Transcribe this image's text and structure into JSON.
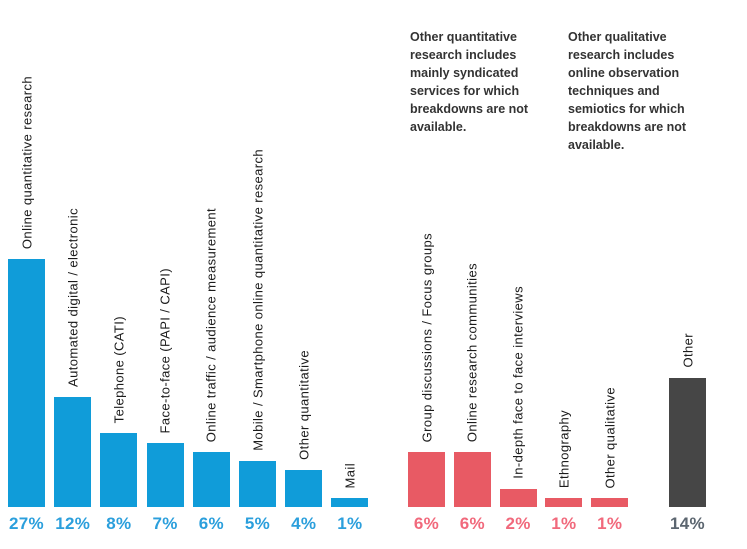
{
  "chart_data": {
    "type": "bar",
    "title": "",
    "unit": "%",
    "layout_hints": {
      "orientation": "vertical-bars",
      "grid": false,
      "axes_shown": false,
      "category_labels": "rotated-90-above-bars",
      "value_labels": "below-bars-colored-by-group",
      "value_range": [
        0,
        27
      ]
    },
    "groups": [
      {
        "name": "quantitative-research",
        "bar_color": "#109CD9",
        "value_color": "#2B9FDC",
        "bars": [
          {
            "label": "Online quantitative research",
            "value": 27,
            "display": "27%"
          },
          {
            "label": "Automated digital / electronic",
            "value": 12,
            "display": "12%"
          },
          {
            "label": "Telephone (CATI)",
            "value": 8,
            "display": "8%"
          },
          {
            "label": "Face-to-face (PAPI / CAPI)",
            "value": 7,
            "display": "7%"
          },
          {
            "label": "Online traffic / audience measurement",
            "value": 6,
            "display": "6%"
          },
          {
            "label": "Mobile / Smartphone online quantitative research",
            "value": 5,
            "display": "5%"
          },
          {
            "label": "Other quantitative",
            "value": 4,
            "display": "4%"
          },
          {
            "label": "Mail",
            "value": 1,
            "display": "1%"
          }
        ]
      },
      {
        "name": "qualitative-research",
        "bar_color": "#E85A64",
        "value_color": "#F1697C",
        "bars": [
          {
            "label": "Group discussions / Focus groups",
            "value": 6,
            "display": "6%"
          },
          {
            "label": "Online research communities",
            "value": 6,
            "display": "6%"
          },
          {
            "label": "In-depth face to face interviews",
            "value": 2,
            "display": "2%"
          },
          {
            "label": "Ethnography",
            "value": 1,
            "display": "1%"
          },
          {
            "label": "Other qualitative",
            "value": 1,
            "display": "1%"
          }
        ]
      },
      {
        "name": "other",
        "bar_color": "#464646",
        "value_color": "#5C6670",
        "bars": [
          {
            "label": "Other",
            "value": 14,
            "display": "14%"
          }
        ]
      }
    ],
    "annotations": [
      {
        "text": "Other quantitative research includes mainly syndicated services for which breakdowns are not available."
      },
      {
        "text": "Other qualitative research includes online observation techniques and semiotics for which breakdowns are not available."
      }
    ]
  }
}
